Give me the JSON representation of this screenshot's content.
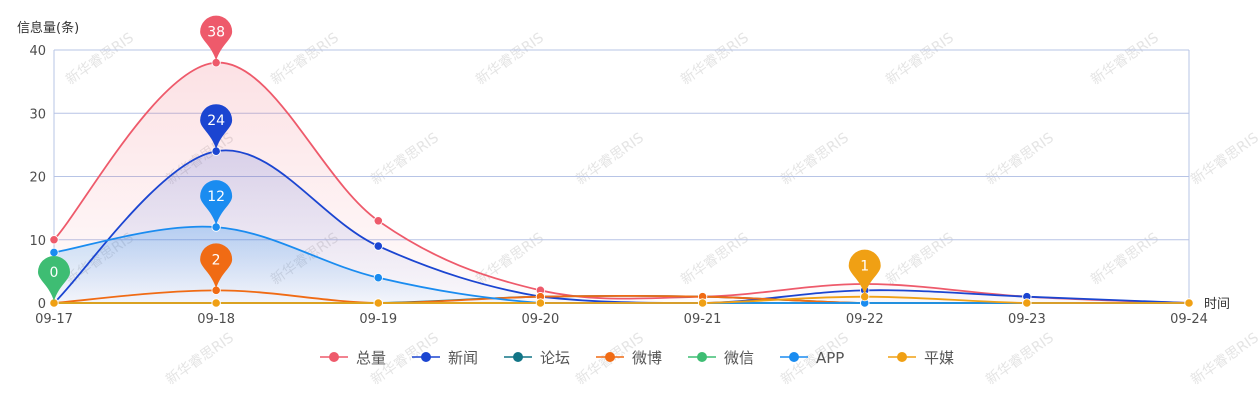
{
  "chart_data": {
    "type": "line",
    "ylabel": "信息量(条)",
    "xlabel": "时间",
    "ylim": [
      0,
      40
    ],
    "yticks": [
      0,
      10,
      20,
      30,
      40
    ],
    "categories": [
      "09-17",
      "09-18",
      "09-19",
      "09-20",
      "09-21",
      "09-22",
      "09-23",
      "09-24"
    ],
    "legend_position": "bottom-center",
    "series": [
      {
        "name": "总量",
        "color": "#ee5a6b",
        "area": true,
        "values": [
          10,
          38,
          13,
          2,
          1,
          3,
          1,
          0
        ],
        "marker_label_index": 1,
        "marker_label": "38"
      },
      {
        "name": "新闻",
        "color": "#1b45d1",
        "area": true,
        "values": [
          0,
          24,
          9,
          1,
          0,
          2,
          1,
          0
        ],
        "marker_label_index": 1,
        "marker_label": "24"
      },
      {
        "name": "论坛",
        "color": "#127586",
        "area": false,
        "values": [
          0,
          0,
          0,
          1,
          1,
          0,
          0,
          0
        ]
      },
      {
        "name": "微博",
        "color": "#f06b14",
        "area": false,
        "values": [
          0,
          2,
          0,
          1,
          1,
          0,
          0,
          0
        ],
        "marker_label_index": 1,
        "marker_label": "2"
      },
      {
        "name": "微信",
        "color": "#3ebd73",
        "area": false,
        "values": [
          0,
          0,
          0,
          0,
          0,
          0,
          0,
          0
        ],
        "marker_label_index": 0,
        "marker_label": "0"
      },
      {
        "name": "APP",
        "color": "#1a8cf0",
        "area": true,
        "values": [
          8,
          12,
          4,
          0,
          0,
          0,
          0,
          0
        ],
        "marker_label_index": 1,
        "marker_label": "12"
      },
      {
        "name": "平媒",
        "color": "#f0a014",
        "area": false,
        "values": [
          0,
          0,
          0,
          0,
          0,
          1,
          0,
          0
        ],
        "marker_label_index": 5,
        "marker_label": "1"
      }
    ],
    "watermark": "新华睿思RIS"
  }
}
